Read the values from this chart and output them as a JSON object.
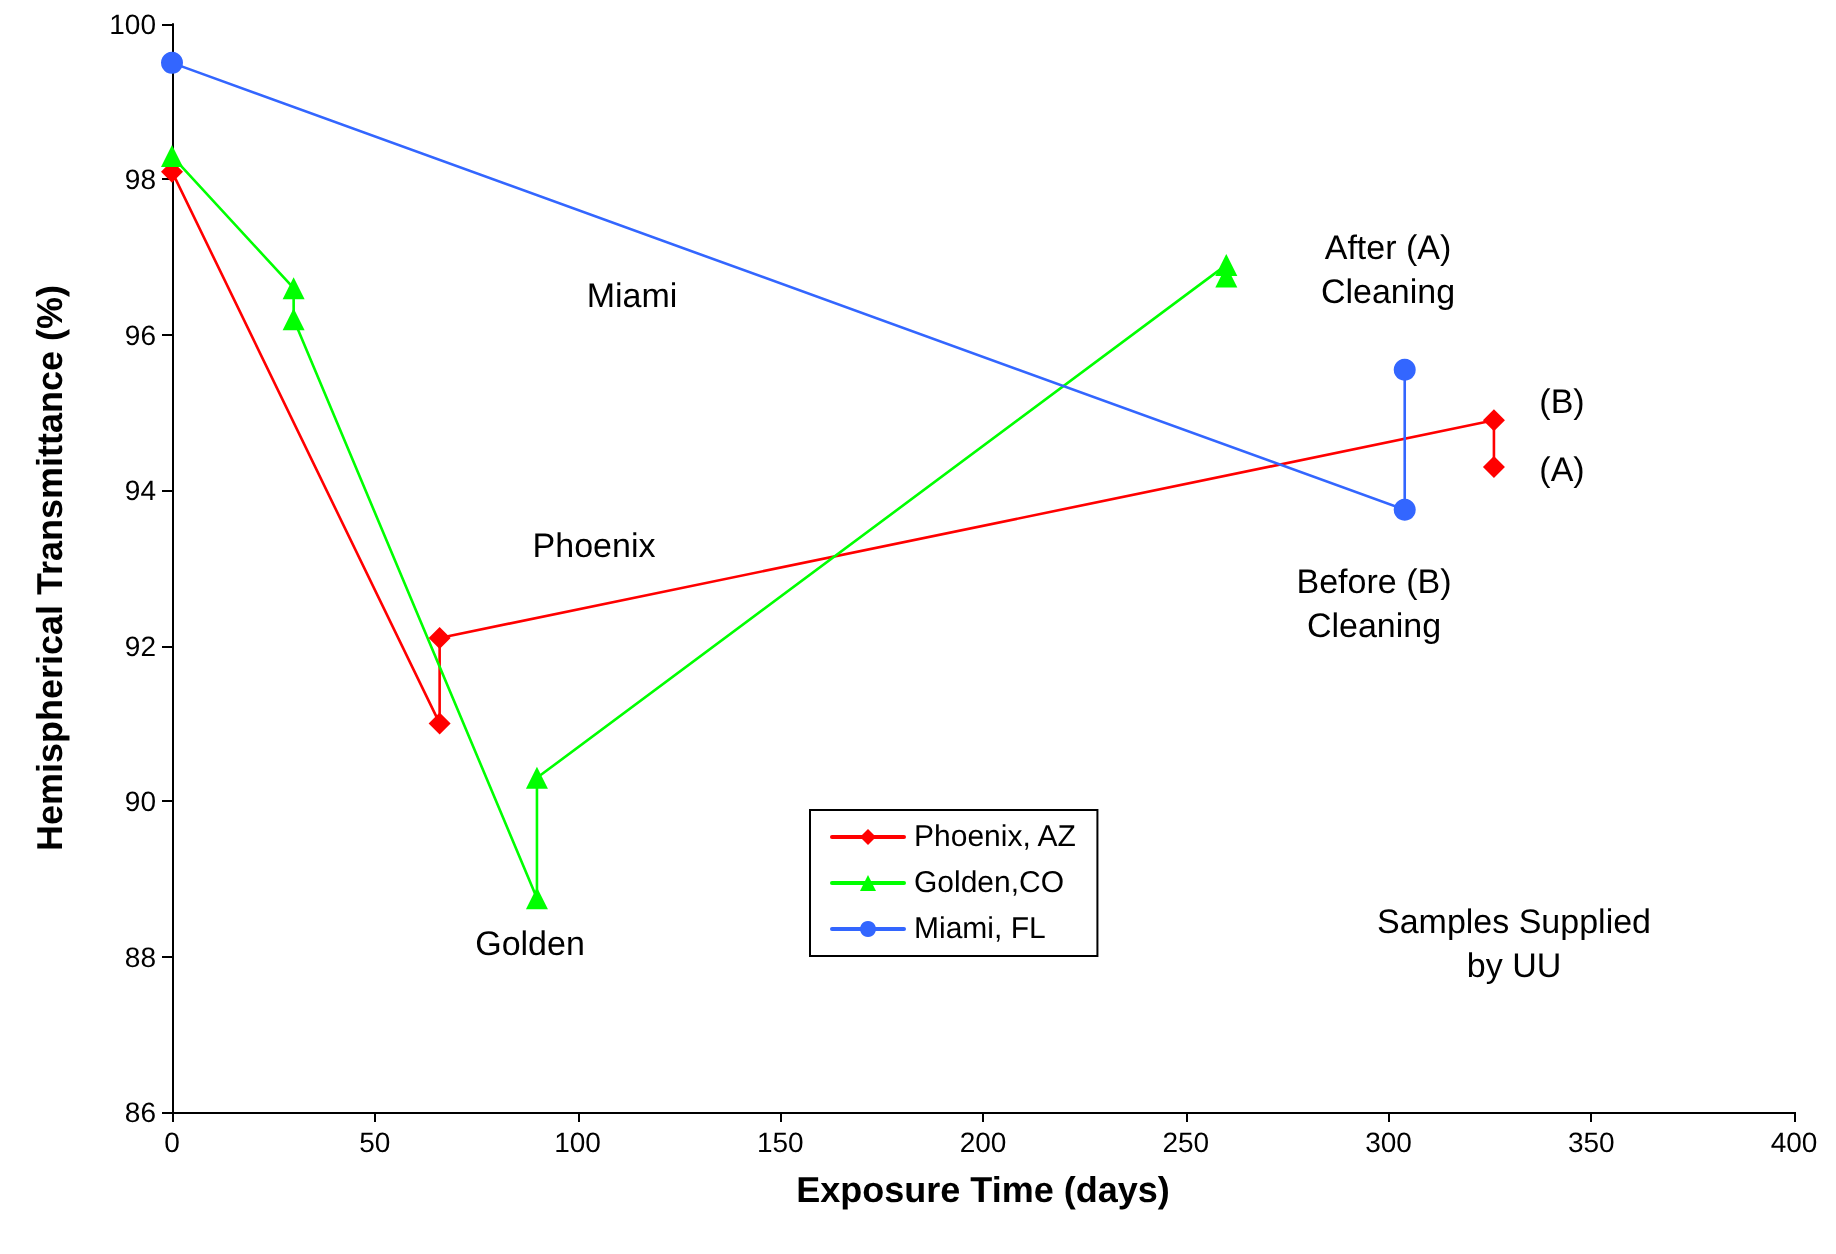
{
  "chart_data": {
    "type": "line",
    "xlabel": "Exposure Time (days)",
    "ylabel": "Hemispherical Transmittance (%)",
    "xlim": [
      0,
      400
    ],
    "xticks": [
      0,
      50,
      100,
      150,
      200,
      250,
      300,
      350,
      400
    ],
    "ylim": [
      86,
      100
    ],
    "yticks": [
      86,
      88,
      90,
      92,
      94,
      96,
      98,
      100
    ],
    "grid": false,
    "legend": "bottom",
    "series": [
      {
        "name": "Phoenix, AZ",
        "color": "#ff0000",
        "marker": "diamond",
        "x": [
          0,
          66,
          66,
          326,
          326
        ],
        "values": [
          98.1,
          91.0,
          92.1,
          94.9,
          94.3
        ]
      },
      {
        "name": "Golden,CO",
        "color": "#00ff00",
        "marker": "triangle",
        "x": [
          0,
          30,
          30,
          90,
          90,
          260,
          260
        ],
        "values": [
          98.3,
          96.6,
          96.2,
          88.75,
          90.3,
          96.9,
          96.75
        ]
      },
      {
        "name": "Miami, FL",
        "color": "#3366ff",
        "marker": "circle",
        "x": [
          0,
          304,
          304
        ],
        "values": [
          99.5,
          93.75,
          95.55
        ]
      }
    ],
    "annotations": [
      "Miami",
      "Phoenix",
      "Golden",
      "After (A)\nCleaning",
      "Before (B)\nCleaning",
      "(B)",
      "(A)",
      "Samples Supplied\nby UU"
    ]
  }
}
